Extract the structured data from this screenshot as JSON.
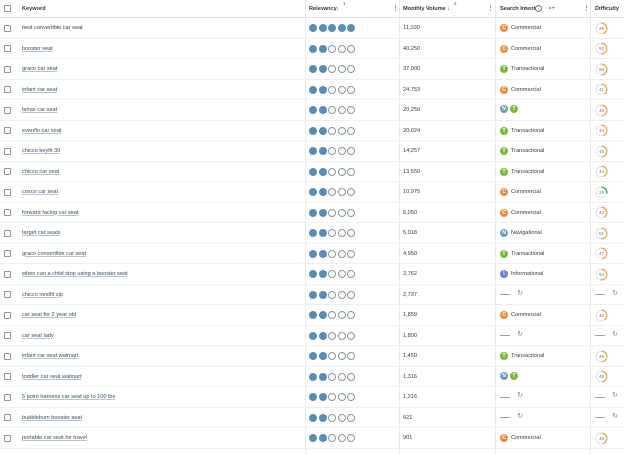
{
  "header": {
    "keyword": "Keyword",
    "relevancy": "Relevancy",
    "relevancy_sort_rank": "1",
    "monthly_volume": "Monthly Volume",
    "volume_sort_rank": "2",
    "search_intent": "Search Intent",
    "difficulty": "Difficulty"
  },
  "colors": {
    "relevancy_filled": "#5b8db3",
    "commercial": "#e88c42",
    "transactional": "#7bb83c",
    "navigational": "#6b9dbb",
    "informational": "#6d7fd6",
    "difficulty_arc": "#f1a64e",
    "difficulty_arc_easy": "#3fae49"
  },
  "rows": [
    {
      "keyword": "best convertible car seat",
      "linked": false,
      "relevancy": 5,
      "volume": "11,100",
      "intents": [
        {
          "code": "C",
          "label": "Commercial"
        }
      ],
      "difficulty": "46"
    },
    {
      "keyword": "booster seat",
      "linked": true,
      "relevancy": 2,
      "volume": "40,250",
      "intents": [
        {
          "code": "C",
          "label": "Commercial"
        }
      ],
      "difficulty": "51"
    },
    {
      "keyword": "graco car seat",
      "linked": true,
      "relevancy": 2,
      "volume": "37,000",
      "intents": [
        {
          "code": "T",
          "label": "Transactional"
        }
      ],
      "difficulty": "50"
    },
    {
      "keyword": "infant car seat",
      "linked": true,
      "relevancy": 2,
      "volume": "24,753",
      "intents": [
        {
          "code": "C",
          "label": "Commercial"
        }
      ],
      "difficulty": "41"
    },
    {
      "keyword": "britax car seat",
      "linked": true,
      "relevancy": 2,
      "volume": "20,250",
      "intents": [
        {
          "code": "N",
          "label": ""
        },
        {
          "code": "T",
          "label": ""
        }
      ],
      "difficulty": "48"
    },
    {
      "keyword": "evenflo car seat",
      "linked": true,
      "relevancy": 2,
      "volume": "20,024",
      "intents": [
        {
          "code": "T",
          "label": "Transactional"
        }
      ],
      "difficulty": "44"
    },
    {
      "keyword": "chicco keyfit 30",
      "linked": true,
      "relevancy": 2,
      "volume": "14,257",
      "intents": [
        {
          "code": "T",
          "label": "Transactional"
        }
      ],
      "difficulty": "48"
    },
    {
      "keyword": "chicco car seat",
      "linked": true,
      "relevancy": 2,
      "volume": "13,550",
      "intents": [
        {
          "code": "T",
          "label": "Transactional"
        }
      ],
      "difficulty": "44"
    },
    {
      "keyword": "cosco car seat",
      "linked": true,
      "relevancy": 2,
      "volume": "10,975",
      "intents": [
        {
          "code": "C",
          "label": "Commercial"
        }
      ],
      "difficulty": "29"
    },
    {
      "keyword": "forward facing car seat",
      "linked": true,
      "relevancy": 2,
      "volume": "6,050",
      "intents": [
        {
          "code": "C",
          "label": "Commercial"
        }
      ],
      "difficulty": "42"
    },
    {
      "keyword": "target car seats",
      "linked": true,
      "relevancy": 2,
      "volume": "5,018",
      "intents": [
        {
          "code": "N",
          "label": "Navigational"
        }
      ],
      "difficulty": "51"
    },
    {
      "keyword": "graco convertible car seat",
      "linked": true,
      "relevancy": 2,
      "volume": "4,950",
      "intents": [
        {
          "code": "T",
          "label": "Transactional"
        }
      ],
      "difficulty": "47"
    },
    {
      "keyword": "when can a child stop using a booster seat",
      "linked": true,
      "relevancy": 2,
      "volume": "3,762",
      "intents": [
        {
          "code": "I",
          "label": "Informational"
        }
      ],
      "difficulty": "54"
    },
    {
      "keyword": "chicco nextfit zip",
      "linked": true,
      "relevancy": 2,
      "volume": "2,737",
      "intents": [],
      "difficulty": ""
    },
    {
      "keyword": "car seat for 2 year old",
      "linked": true,
      "relevancy": 2,
      "volume": "1,859",
      "intents": [
        {
          "code": "C",
          "label": "Commercial"
        }
      ],
      "difficulty": "40"
    },
    {
      "keyword": "car seat lady",
      "linked": true,
      "relevancy": 2,
      "volume": "1,800",
      "intents": [],
      "difficulty": ""
    },
    {
      "keyword": "infant car seat walmart",
      "linked": true,
      "relevancy": 2,
      "volume": "1,450",
      "intents": [
        {
          "code": "T",
          "label": "Transactional"
        }
      ],
      "difficulty": "48"
    },
    {
      "keyword": "toddler car seat walmart",
      "linked": true,
      "relevancy": 2,
      "volume": "1,316",
      "intents": [
        {
          "code": "N",
          "label": ""
        },
        {
          "code": "T",
          "label": ""
        }
      ],
      "difficulty": "48"
    },
    {
      "keyword": "5 point harness car seat up to 100 lbs",
      "linked": true,
      "relevancy": 2,
      "volume": "1,316",
      "intents": [],
      "difficulty": ""
    },
    {
      "keyword": "bubblebum booster seat",
      "linked": true,
      "relevancy": 2,
      "volume": "921",
      "intents": [],
      "difficulty": ""
    },
    {
      "keyword": "portable car seat for travel",
      "linked": true,
      "relevancy": 2,
      "volume": "901",
      "intents": [
        {
          "code": "C",
          "label": "Commercial"
        }
      ],
      "difficulty": "46"
    }
  ]
}
